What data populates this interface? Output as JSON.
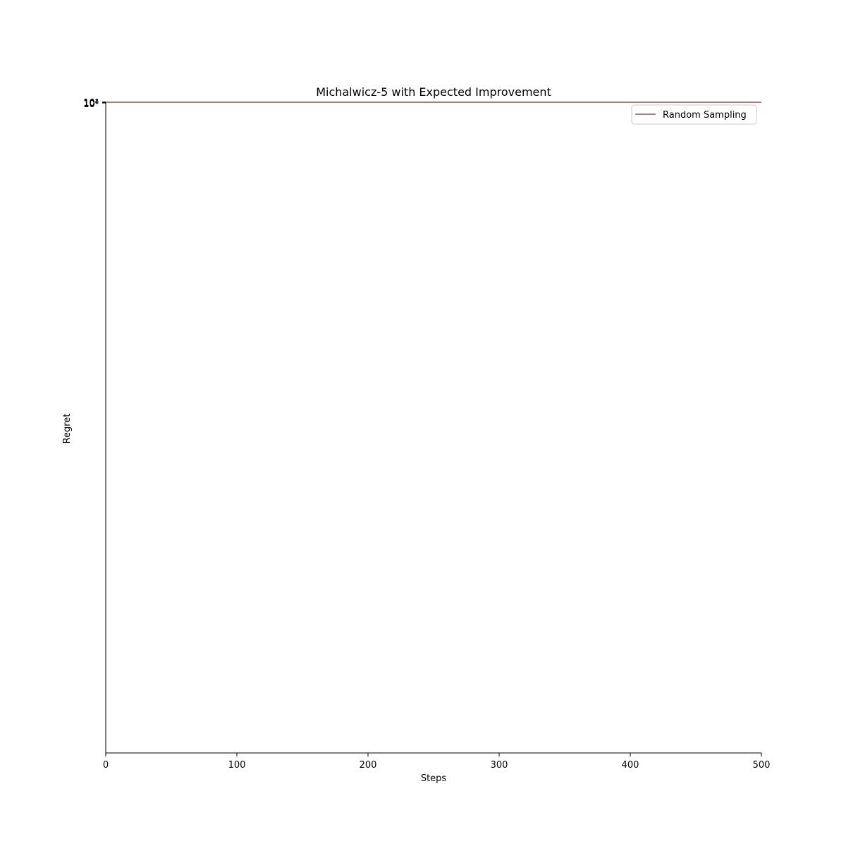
{
  "chart_data": {
    "type": "line",
    "title": "Michalwicz-5 with Expected Improvement",
    "xlabel": "Steps",
    "ylabel": "Regret",
    "x_ticks": [
      "0",
      "100",
      "200",
      "300",
      "400",
      "500"
    ],
    "x_tick_values": [
      0,
      100,
      200,
      300,
      400,
      500
    ],
    "xlim": [
      0,
      500
    ],
    "yscale": "log",
    "y_tick_labels_overlapping": [
      "10⁰",
      "10¹",
      "10²"
    ],
    "grid": false,
    "legend_position": "top-right",
    "series": [
      {
        "name": "Random Sampling",
        "color": "#8c564b",
        "note_position": "flat line along the top of the plot",
        "x": [
          0,
          500
        ]
      }
    ]
  }
}
